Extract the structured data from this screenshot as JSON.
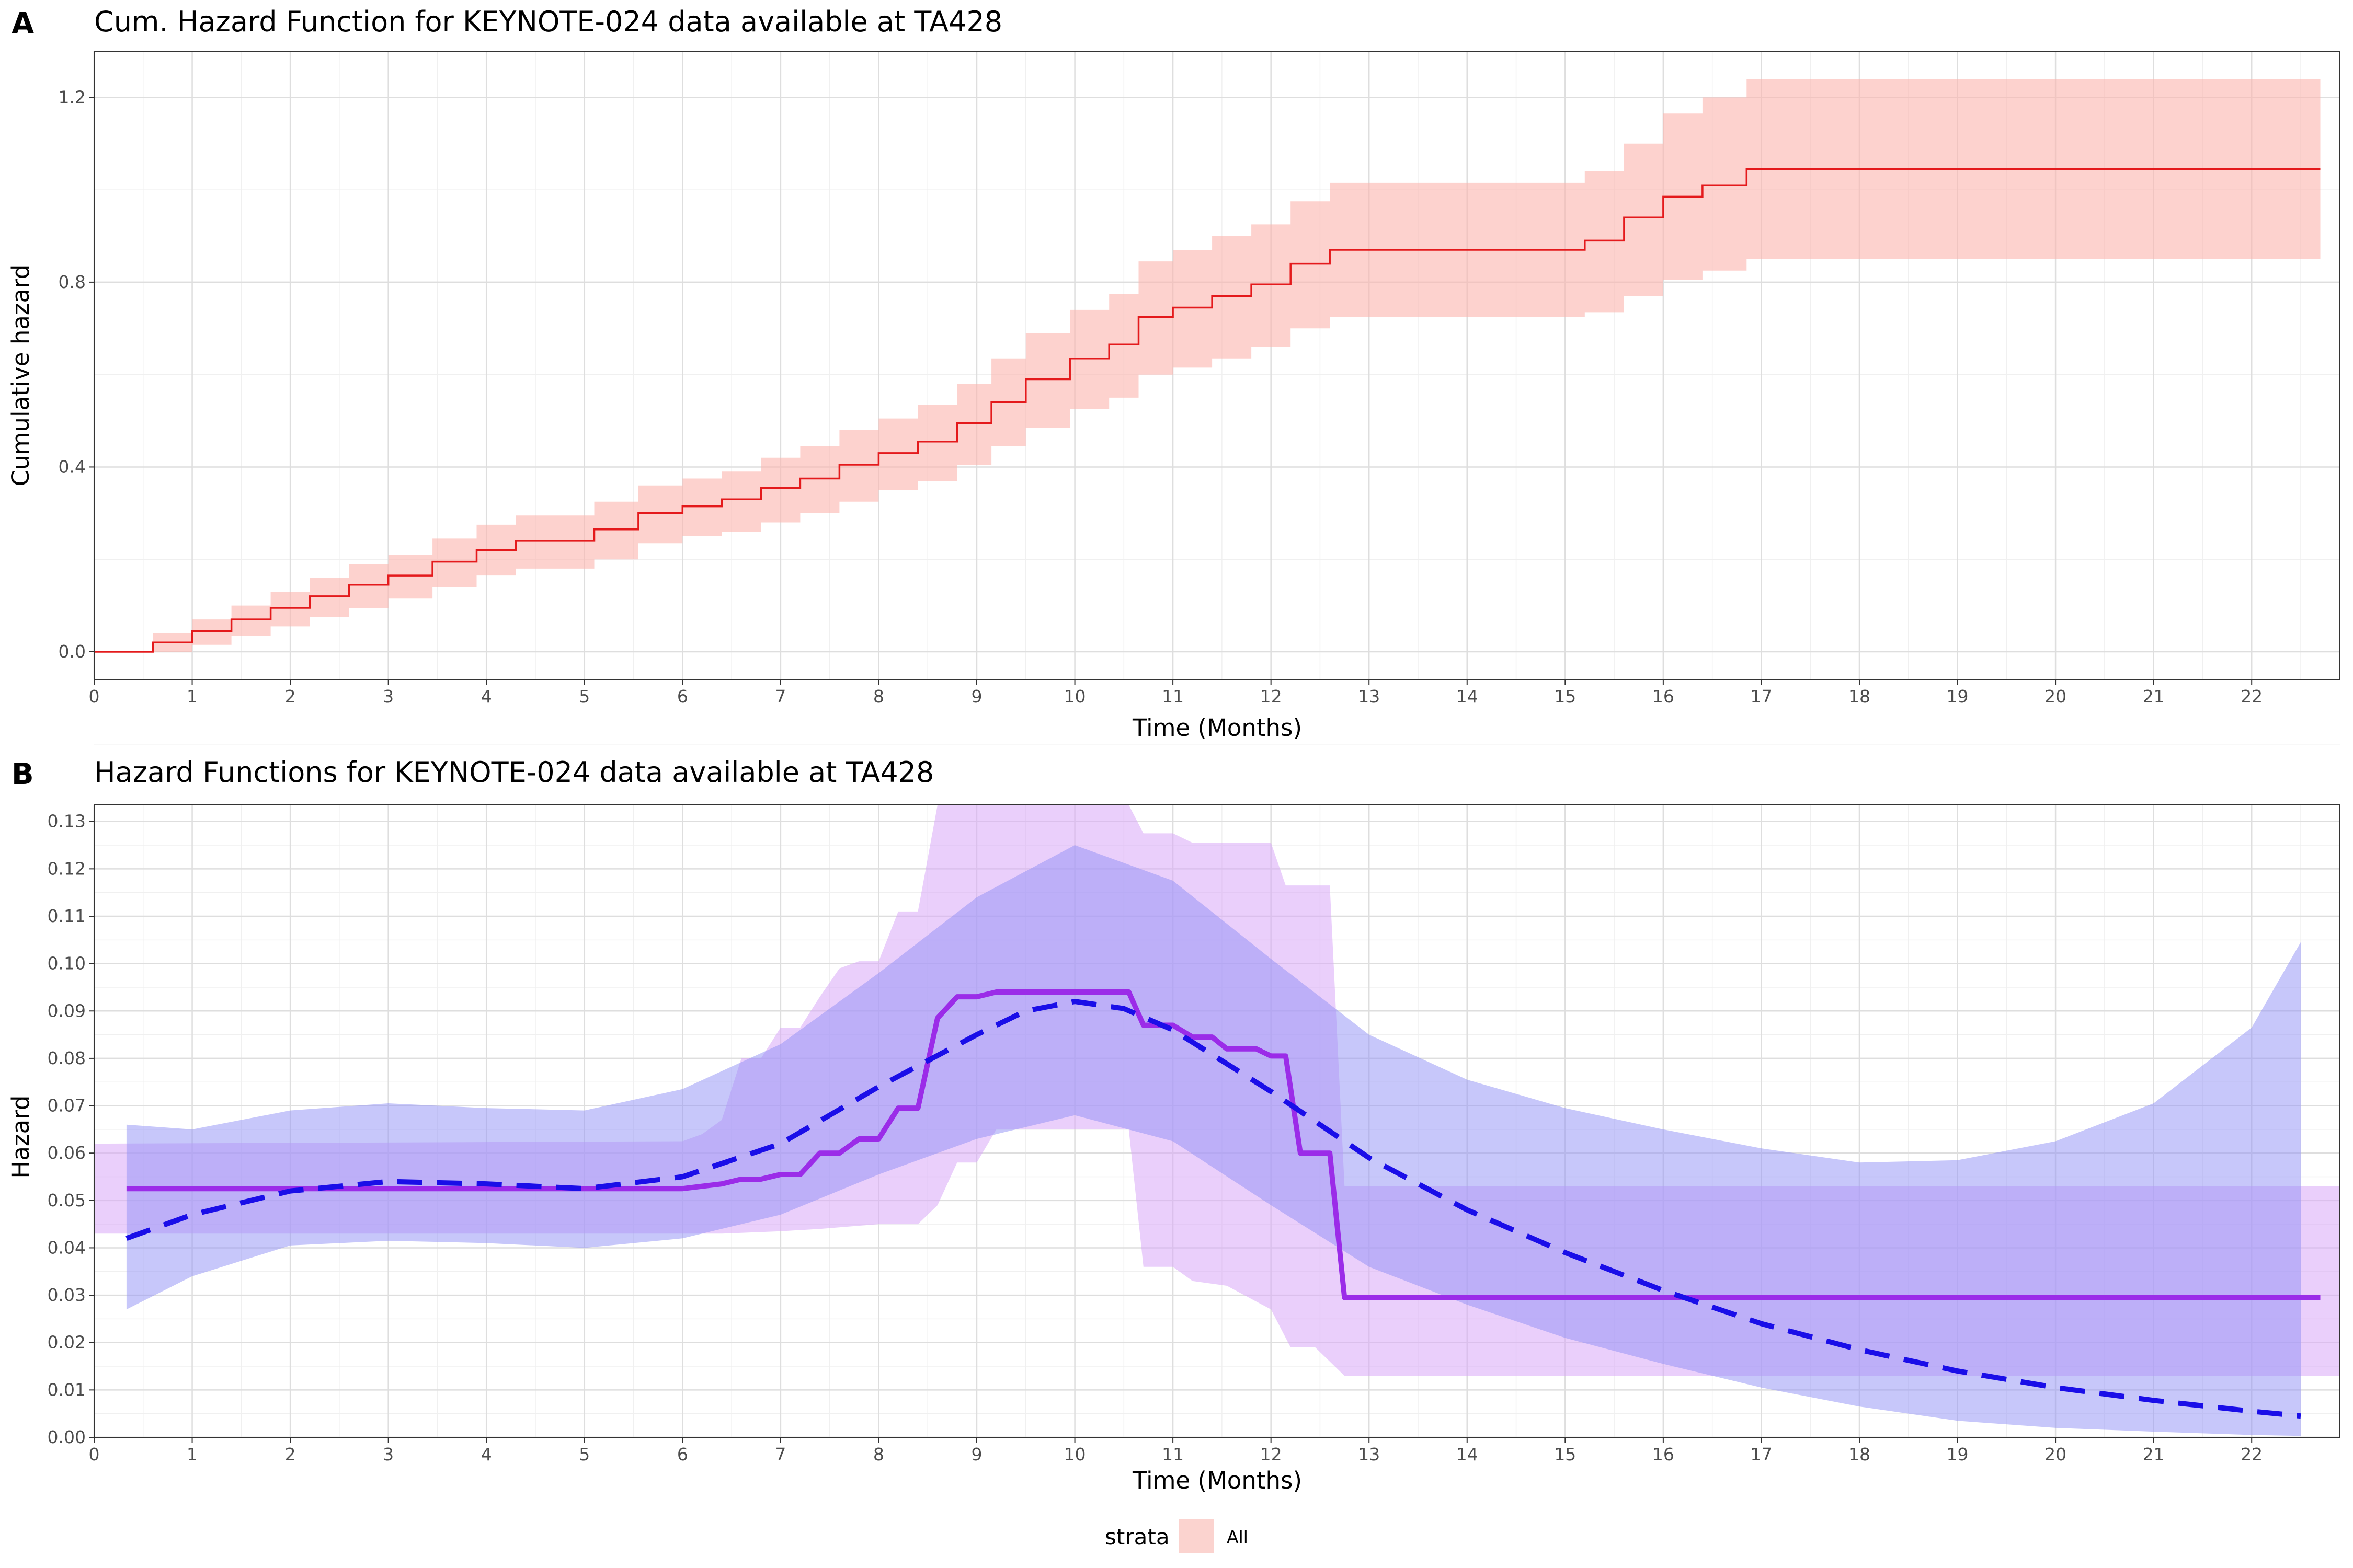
{
  "panels": [
    {
      "letter": "A",
      "title": "Cum. Hazard Function for KEYNOTE-024 data available at TA428"
    },
    {
      "letter": "B",
      "title": "Hazard Functions for KEYNOTE-024 data available at TA428"
    }
  ],
  "legend": {
    "title": "strata",
    "label": "All",
    "color": "#f8766d"
  },
  "chart_data": [
    {
      "type": "line",
      "subtype": "step",
      "title": "Cum. Hazard Function for KEYNOTE-024 data available at TA428",
      "xlabel": "Time (Months)",
      "ylabel": "Cumulative hazard",
      "xlim": [
        0,
        22.9
      ],
      "ylim": [
        -0.06,
        1.3
      ],
      "xticks": [
        "0",
        "1",
        "2",
        "3",
        "4",
        "5",
        "6",
        "7",
        "8",
        "9",
        "10",
        "11",
        "12",
        "13",
        "14",
        "15",
        "16",
        "17",
        "18",
        "19",
        "20",
        "21",
        "22"
      ],
      "yticks": [
        "0.0",
        "0.4",
        "0.8",
        "1.2"
      ],
      "grid": true,
      "colors": {
        "line": "#e41a1c",
        "band": "#fbb4ae"
      },
      "series": [
        {
          "name": "All",
          "kind": "step",
          "x": [
            0,
            0.6,
            1.0,
            1.4,
            1.8,
            2.2,
            2.6,
            3.0,
            3.45,
            3.9,
            4.3,
            5.1,
            5.55,
            6.0,
            6.4,
            6.8,
            7.2,
            7.6,
            8.0,
            8.4,
            8.8,
            9.15,
            9.5,
            9.95,
            10.35,
            10.65,
            11.0,
            11.4,
            11.8,
            12.2,
            12.6,
            15.2,
            15.6,
            16.0,
            16.4,
            16.85,
            22.7
          ],
          "y": [
            0,
            0.02,
            0.045,
            0.07,
            0.095,
            0.12,
            0.145,
            0.165,
            0.195,
            0.22,
            0.24,
            0.265,
            0.3,
            0.315,
            0.33,
            0.355,
            0.375,
            0.405,
            0.43,
            0.455,
            0.495,
            0.54,
            0.59,
            0.635,
            0.665,
            0.725,
            0.745,
            0.77,
            0.795,
            0.84,
            0.87,
            0.89,
            0.94,
            0.985,
            1.01,
            1.045,
            1.045
          ]
        },
        {
          "name": "lower",
          "kind": "band-step",
          "x": [
            0,
            0.6,
            1.0,
            1.4,
            1.8,
            2.2,
            2.6,
            3.0,
            3.45,
            3.9,
            4.3,
            5.1,
            5.55,
            6.0,
            6.4,
            6.8,
            7.2,
            7.6,
            8.0,
            8.4,
            8.8,
            9.15,
            9.5,
            9.95,
            10.35,
            10.65,
            11.0,
            11.4,
            11.8,
            12.2,
            12.6,
            15.2,
            15.6,
            16.0,
            16.4,
            16.85,
            22.7
          ],
          "y": [
            0,
            0.0,
            0.015,
            0.035,
            0.055,
            0.075,
            0.095,
            0.115,
            0.14,
            0.165,
            0.18,
            0.2,
            0.235,
            0.25,
            0.26,
            0.28,
            0.3,
            0.325,
            0.35,
            0.37,
            0.405,
            0.445,
            0.485,
            0.525,
            0.55,
            0.6,
            0.615,
            0.635,
            0.66,
            0.7,
            0.725,
            0.735,
            0.77,
            0.805,
            0.825,
            0.85,
            0.85
          ]
        },
        {
          "name": "upper",
          "kind": "band-step",
          "x": [
            0,
            0.6,
            1.0,
            1.4,
            1.8,
            2.2,
            2.6,
            3.0,
            3.45,
            3.9,
            4.3,
            5.1,
            5.55,
            6.0,
            6.4,
            6.8,
            7.2,
            7.6,
            8.0,
            8.4,
            8.8,
            9.15,
            9.5,
            9.95,
            10.35,
            10.65,
            11.0,
            11.4,
            11.8,
            12.2,
            12.6,
            15.2,
            15.6,
            16.0,
            16.4,
            16.85,
            22.7
          ],
          "y": [
            0,
            0.04,
            0.07,
            0.1,
            0.13,
            0.16,
            0.19,
            0.21,
            0.245,
            0.275,
            0.295,
            0.325,
            0.36,
            0.375,
            0.39,
            0.42,
            0.445,
            0.48,
            0.505,
            0.535,
            0.58,
            0.635,
            0.69,
            0.74,
            0.775,
            0.845,
            0.87,
            0.9,
            0.925,
            0.975,
            1.015,
            1.04,
            1.1,
            1.165,
            1.2,
            1.24,
            1.24
          ]
        }
      ]
    },
    {
      "type": "line",
      "title": "Hazard Functions for KEYNOTE-024 data available at TA428",
      "xlabel": "Time (Months)",
      "ylabel": "Hazard",
      "xlim": [
        0,
        22.9
      ],
      "ylim": [
        0,
        0.1335
      ],
      "xticks": [
        "0",
        "1",
        "2",
        "3",
        "4",
        "5",
        "6",
        "7",
        "8",
        "9",
        "10",
        "11",
        "12",
        "13",
        "14",
        "15",
        "16",
        "17",
        "18",
        "19",
        "20",
        "21",
        "22"
      ],
      "yticks": [
        "0.00",
        "0.01",
        "0.02",
        "0.03",
        "0.04",
        "0.05",
        "0.06",
        "0.07",
        "0.08",
        "0.09",
        "0.10",
        "0.11",
        "0.12",
        "0.13"
      ],
      "grid": true,
      "legend": {
        "title": "strata",
        "entries": [
          "All"
        ],
        "position": "bottom"
      },
      "colors": {
        "smooth_line": "#1a0ee8",
        "smooth_band": "#8f8ff5",
        "piecewise_line": "#9b2ce8",
        "piecewise_band": "#d9a8f7"
      },
      "series": [
        {
          "name": "smooth",
          "style": "dashed",
          "x": [
            0.33,
            1,
            2,
            3,
            4,
            5,
            6,
            7,
            8,
            9,
            9.5,
            10,
            10.5,
            11,
            12,
            13,
            14,
            15,
            16,
            17,
            18,
            19,
            20,
            21,
            22,
            22.5
          ],
          "y": [
            0.042,
            0.047,
            0.052,
            0.054,
            0.0535,
            0.0525,
            0.055,
            0.062,
            0.074,
            0.085,
            0.09,
            0.092,
            0.0905,
            0.086,
            0.073,
            0.059,
            0.048,
            0.039,
            0.031,
            0.024,
            0.0185,
            0.014,
            0.0105,
            0.0078,
            0.0055,
            0.0045
          ]
        },
        {
          "name": "smooth-lower",
          "x": [
            0.33,
            1,
            2,
            3,
            4,
            5,
            6,
            7,
            8,
            9,
            10,
            11,
            12,
            13,
            14,
            15,
            16,
            17,
            18,
            19,
            20,
            21,
            22,
            22.5
          ],
          "y": [
            0.027,
            0.034,
            0.0405,
            0.0415,
            0.041,
            0.04,
            0.042,
            0.047,
            0.0555,
            0.063,
            0.068,
            0.0625,
            0.049,
            0.036,
            0.028,
            0.021,
            0.0155,
            0.0105,
            0.0065,
            0.0035,
            0.002,
            0.0012,
            0.0005,
            0.0003
          ]
        },
        {
          "name": "smooth-upper",
          "x": [
            0.33,
            1,
            2,
            3,
            4,
            5,
            6,
            7,
            8,
            9,
            10,
            11,
            12,
            13,
            14,
            15,
            16,
            17,
            18,
            19,
            20,
            21,
            22,
            22.5
          ],
          "y": [
            0.066,
            0.065,
            0.069,
            0.0705,
            0.0695,
            0.069,
            0.0735,
            0.083,
            0.098,
            0.114,
            0.125,
            0.1175,
            0.101,
            0.085,
            0.0755,
            0.0695,
            0.065,
            0.061,
            0.058,
            0.0585,
            0.0625,
            0.0705,
            0.0865,
            0.1045
          ]
        },
        {
          "name": "piecewise",
          "style": "solid",
          "x": [
            0.33,
            6.0,
            6.2,
            6.4,
            6.6,
            6.8,
            7.0,
            7.2,
            7.4,
            7.6,
            7.8,
            8.0,
            8.2,
            8.4,
            8.6,
            8.8,
            9.0,
            9.2,
            9.4,
            9.6,
            9.8,
            10.0,
            10.2,
            10.4,
            10.55,
            10.7,
            10.85,
            11.0,
            11.2,
            11.4,
            11.55,
            11.7,
            11.85,
            12.0,
            12.15,
            12.3,
            12.45,
            12.6,
            12.75,
            22.7
          ],
          "y": [
            0.0525,
            0.0525,
            0.053,
            0.0535,
            0.0545,
            0.0545,
            0.0555,
            0.0555,
            0.06,
            0.06,
            0.063,
            0.063,
            0.0695,
            0.0695,
            0.0885,
            0.093,
            0.093,
            0.094,
            0.094,
            0.094,
            0.094,
            0.094,
            0.094,
            0.094,
            0.094,
            0.087,
            0.087,
            0.087,
            0.0845,
            0.0845,
            0.082,
            0.082,
            0.082,
            0.0805,
            0.0805,
            0.06,
            0.06,
            0.06,
            0.0295,
            0.0295
          ]
        },
        {
          "name": "piecewise-lower",
          "x": [
            0,
            0.01,
            6.0,
            6.4,
            7.0,
            7.4,
            8.0,
            8.4,
            8.6,
            8.8,
            9.0,
            9.2,
            9.4,
            9.6,
            10.0,
            10.4,
            10.55,
            10.7,
            11.0,
            11.2,
            11.55,
            12.0,
            12.2,
            12.45,
            12.75,
            22.9
          ],
          "y": [
            0.043,
            0.043,
            0.043,
            0.043,
            0.0435,
            0.044,
            0.045,
            0.045,
            0.049,
            0.058,
            0.058,
            0.065,
            0.065,
            0.065,
            0.065,
            0.065,
            0.065,
            0.036,
            0.036,
            0.033,
            0.032,
            0.027,
            0.019,
            0.019,
            0.013,
            0.013
          ]
        },
        {
          "name": "piecewise-upper",
          "x": [
            0,
            0.01,
            6.0,
            6.2,
            6.4,
            6.6,
            6.8,
            7.0,
            7.2,
            7.4,
            7.6,
            7.8,
            8.0,
            8.2,
            8.4,
            8.6,
            8.8,
            9.0,
            10.0,
            10.55,
            10.7,
            11.0,
            11.2,
            11.55,
            12.0,
            12.15,
            12.3,
            12.6,
            12.75,
            22.9
          ],
          "y": [
            0.062,
            0.062,
            0.0625,
            0.064,
            0.067,
            0.08,
            0.08,
            0.0865,
            0.0865,
            0.093,
            0.099,
            0.1005,
            0.1005,
            0.111,
            0.111,
            0.1335,
            0.1335,
            0.1335,
            0.1335,
            0.1335,
            0.1275,
            0.1275,
            0.1255,
            0.1255,
            0.1255,
            0.1165,
            0.1165,
            0.1165,
            0.053,
            0.053
          ]
        }
      ]
    }
  ]
}
